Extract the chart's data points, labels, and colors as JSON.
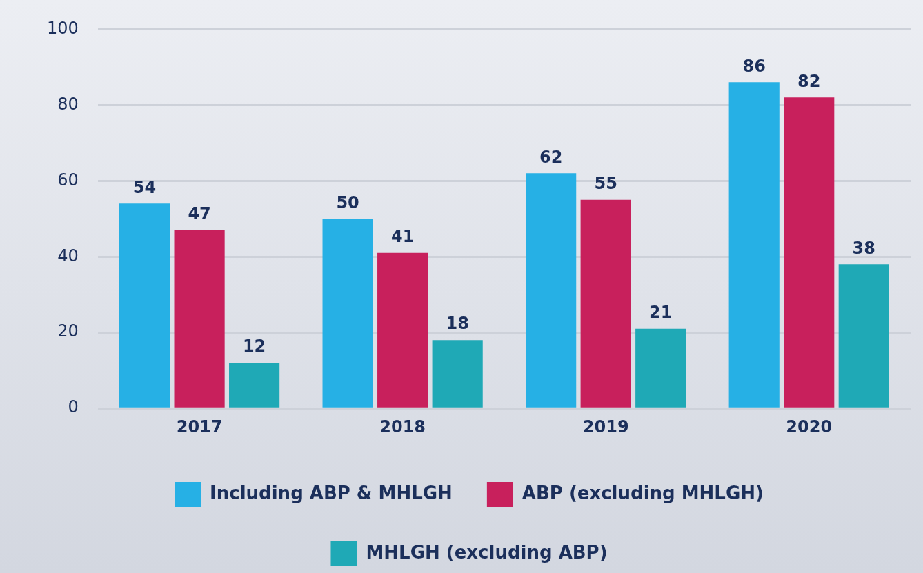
{
  "chart_data": {
    "type": "bar",
    "categories": [
      "2017",
      "2018",
      "2019",
      "2020"
    ],
    "series": [
      {
        "name": "Including ABP & MHLGH",
        "color": "#26b0e5",
        "values": [
          54,
          50,
          62,
          86
        ]
      },
      {
        "name": "ABP (excluding MHLGH)",
        "color": "#c8205c",
        "values": [
          47,
          41,
          55,
          82
        ]
      },
      {
        "name": "MHLGH (excluding ABP)",
        "color": "#1fa9b6",
        "values": [
          12,
          18,
          21,
          38
        ]
      }
    ],
    "ylim": [
      0,
      100
    ],
    "yticks": [
      0,
      20,
      40,
      60,
      80,
      100
    ],
    "grid": "y",
    "legend": "bottom",
    "data_labels": true
  }
}
